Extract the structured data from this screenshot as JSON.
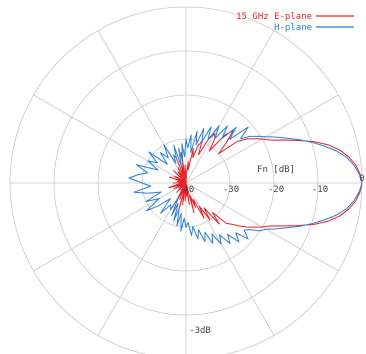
{
  "chart_data": {
    "type": "line",
    "coordinate_system": "polar",
    "title": "",
    "ylabel": "Fn [dB]",
    "bottom_label": "-3dB",
    "r_ticks": [
      "-40",
      "-30",
      "-20",
      "-10",
      "0"
    ],
    "rlim": [
      -40,
      0
    ],
    "angle_grid_step_deg": 30,
    "grid": true,
    "legend_position": "top-right",
    "series": [
      {
        "name": "15 GHz E-plane",
        "color": "#e8202a",
        "theta_deg": [
          0,
          3,
          6,
          9,
          12,
          15,
          18,
          21,
          24,
          27,
          30,
          33,
          36,
          39,
          42,
          45,
          48,
          51,
          54,
          57,
          60,
          63,
          66,
          69,
          72,
          75,
          78,
          81,
          84,
          87,
          90,
          93,
          96,
          99,
          102,
          105,
          108,
          111,
          114,
          117,
          120,
          125,
          130,
          135,
          140,
          145,
          150,
          155,
          160,
          165,
          170,
          175,
          180,
          185,
          190,
          195,
          200,
          205,
          210,
          215,
          220,
          225,
          230,
          235,
          240,
          243,
          246,
          249,
          252,
          255,
          258,
          261,
          264,
          267,
          270,
          273,
          276,
          279,
          282,
          285,
          288,
          291,
          294,
          297,
          300,
          303,
          306,
          309,
          312,
          315,
          318,
          321,
          324,
          327,
          330,
          333,
          336,
          339,
          342,
          345,
          348,
          351,
          354,
          357,
          360
        ],
        "fn_db": [
          0,
          -0.4,
          -1.2,
          -2.5,
          -4.2,
          -6.5,
          -9.5,
          -13,
          -16,
          -18.5,
          -20,
          -21.5,
          -23,
          -25,
          -30,
          -27,
          -24,
          -26,
          -31,
          -28,
          -27,
          -29,
          -33,
          -30,
          -31,
          -34,
          -32,
          -37,
          -35,
          -38,
          -40,
          -36,
          -39,
          -33,
          -38,
          -35,
          -39,
          -34,
          -40,
          -36,
          -38,
          -37,
          -39,
          -36,
          -40,
          -38,
          -37,
          -39,
          -36,
          -40,
          -38,
          -39,
          -37,
          -40,
          -38,
          -36,
          -39,
          -37,
          -40,
          -38,
          -39,
          -37,
          -40,
          -39,
          -38,
          -35,
          -39,
          -36,
          -40,
          -34,
          -38,
          -35,
          -40,
          -36,
          -39,
          -37,
          -38,
          -35,
          -40,
          -33,
          -37,
          -34,
          -36,
          -31,
          -34,
          -30,
          -33,
          -28,
          -31,
          -27,
          -26,
          -24.5,
          -23,
          -21.5,
          -20,
          -18.5,
          -16,
          -13,
          -9.5,
          -6.5,
          -4.2,
          -2.5,
          -1.2,
          -0.4,
          0
        ]
      },
      {
        "name": "H-plane",
        "color": "#2a7fd4",
        "theta_deg": [
          0,
          3,
          6,
          9,
          12,
          15,
          18,
          21,
          24,
          27,
          30,
          33,
          36,
          39,
          42,
          45,
          48,
          51,
          54,
          57,
          60,
          63,
          66,
          69,
          72,
          75,
          78,
          81,
          84,
          87,
          90,
          93,
          96,
          99,
          102,
          105,
          108,
          111,
          114,
          117,
          120,
          125,
          130,
          135,
          140,
          145,
          150,
          155,
          160,
          165,
          170,
          175,
          180,
          185,
          190,
          195,
          200,
          205,
          210,
          215,
          220,
          225,
          230,
          235,
          240,
          243,
          246,
          249,
          252,
          255,
          258,
          261,
          264,
          267,
          270,
          273,
          276,
          279,
          282,
          285,
          288,
          291,
          294,
          297,
          300,
          303,
          306,
          309,
          312,
          315,
          318,
          321,
          324,
          327,
          330,
          333,
          336,
          339,
          342,
          345,
          348,
          351,
          354,
          357,
          360
        ],
        "fn_db": [
          0,
          -0.6,
          -1.6,
          -3,
          -5,
          -7.5,
          -10,
          -12.5,
          -15,
          -17,
          -19,
          -20.5,
          -22,
          -24,
          -21,
          -26,
          -23,
          -27,
          -24,
          -28,
          -25,
          -29,
          -26,
          -30,
          -27,
          -31,
          -28,
          -33,
          -29,
          -32,
          -30,
          -34,
          -31,
          -35,
          -32,
          -36,
          -31,
          -34,
          -33,
          -35,
          -30,
          -33,
          -31,
          -34,
          -29,
          -32,
          -30,
          -33,
          -28,
          -31,
          -29,
          -27,
          -30,
          -32,
          -28,
          -31,
          -34,
          -30,
          -33,
          -29,
          -32,
          -35,
          -31,
          -34,
          -33,
          -36,
          -32,
          -35,
          -31,
          -34,
          -30,
          -33,
          -29,
          -32,
          -30,
          -31,
          -28,
          -30,
          -27,
          -29,
          -26,
          -28,
          -25,
          -27,
          -24,
          -26,
          -23,
          -25,
          -22,
          -24,
          -21,
          -23,
          -22,
          -20,
          -19,
          -17,
          -15,
          -12.5,
          -10,
          -7.5,
          -5,
          -3,
          -1.6,
          -0.6,
          0
        ]
      }
    ]
  }
}
